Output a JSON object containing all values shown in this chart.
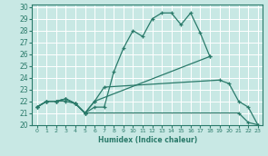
{
  "xlabel": "Humidex (Indice chaleur)",
  "xlim": [
    -0.5,
    23.5
  ],
  "ylim": [
    20,
    30.2
  ],
  "yticks": [
    20,
    21,
    22,
    23,
    24,
    25,
    26,
    27,
    28,
    29,
    30
  ],
  "xticks": [
    0,
    1,
    2,
    3,
    4,
    5,
    6,
    7,
    8,
    9,
    10,
    11,
    12,
    13,
    14,
    15,
    16,
    17,
    18,
    19,
    20,
    21,
    22,
    23
  ],
  "background_color": "#c8e8e4",
  "grid_color": "#b0d8d4",
  "line_color": "#2a7a6a",
  "lines": [
    {
      "x": [
        0,
        1,
        2,
        3,
        4,
        5,
        6,
        7,
        8,
        9,
        10,
        11,
        12,
        13,
        14,
        15,
        16,
        17,
        18
      ],
      "y": [
        21.5,
        22.0,
        22.0,
        22.2,
        21.8,
        21.0,
        21.5,
        21.5,
        24.5,
        26.5,
        28.0,
        27.5,
        29.0,
        29.5,
        29.5,
        28.5,
        29.5,
        27.8,
        25.8
      ]
    },
    {
      "x": [
        0,
        1,
        2,
        3,
        4,
        5,
        6,
        18
      ],
      "y": [
        21.5,
        22.0,
        22.0,
        22.2,
        21.8,
        21.0,
        22.0,
        25.8
      ]
    },
    {
      "x": [
        0,
        1,
        2,
        3,
        4,
        5,
        6,
        7,
        19,
        20,
        21,
        22,
        23
      ],
      "y": [
        21.5,
        22.0,
        22.0,
        22.2,
        21.8,
        21.0,
        22.0,
        23.2,
        23.8,
        23.5,
        22.0,
        21.5,
        20.0
      ]
    },
    {
      "x": [
        0,
        1,
        2,
        3,
        4,
        5,
        21,
        22,
        23
      ],
      "y": [
        21.5,
        22.0,
        22.0,
        22.0,
        21.8,
        21.0,
        21.0,
        20.2,
        20.0
      ]
    }
  ]
}
